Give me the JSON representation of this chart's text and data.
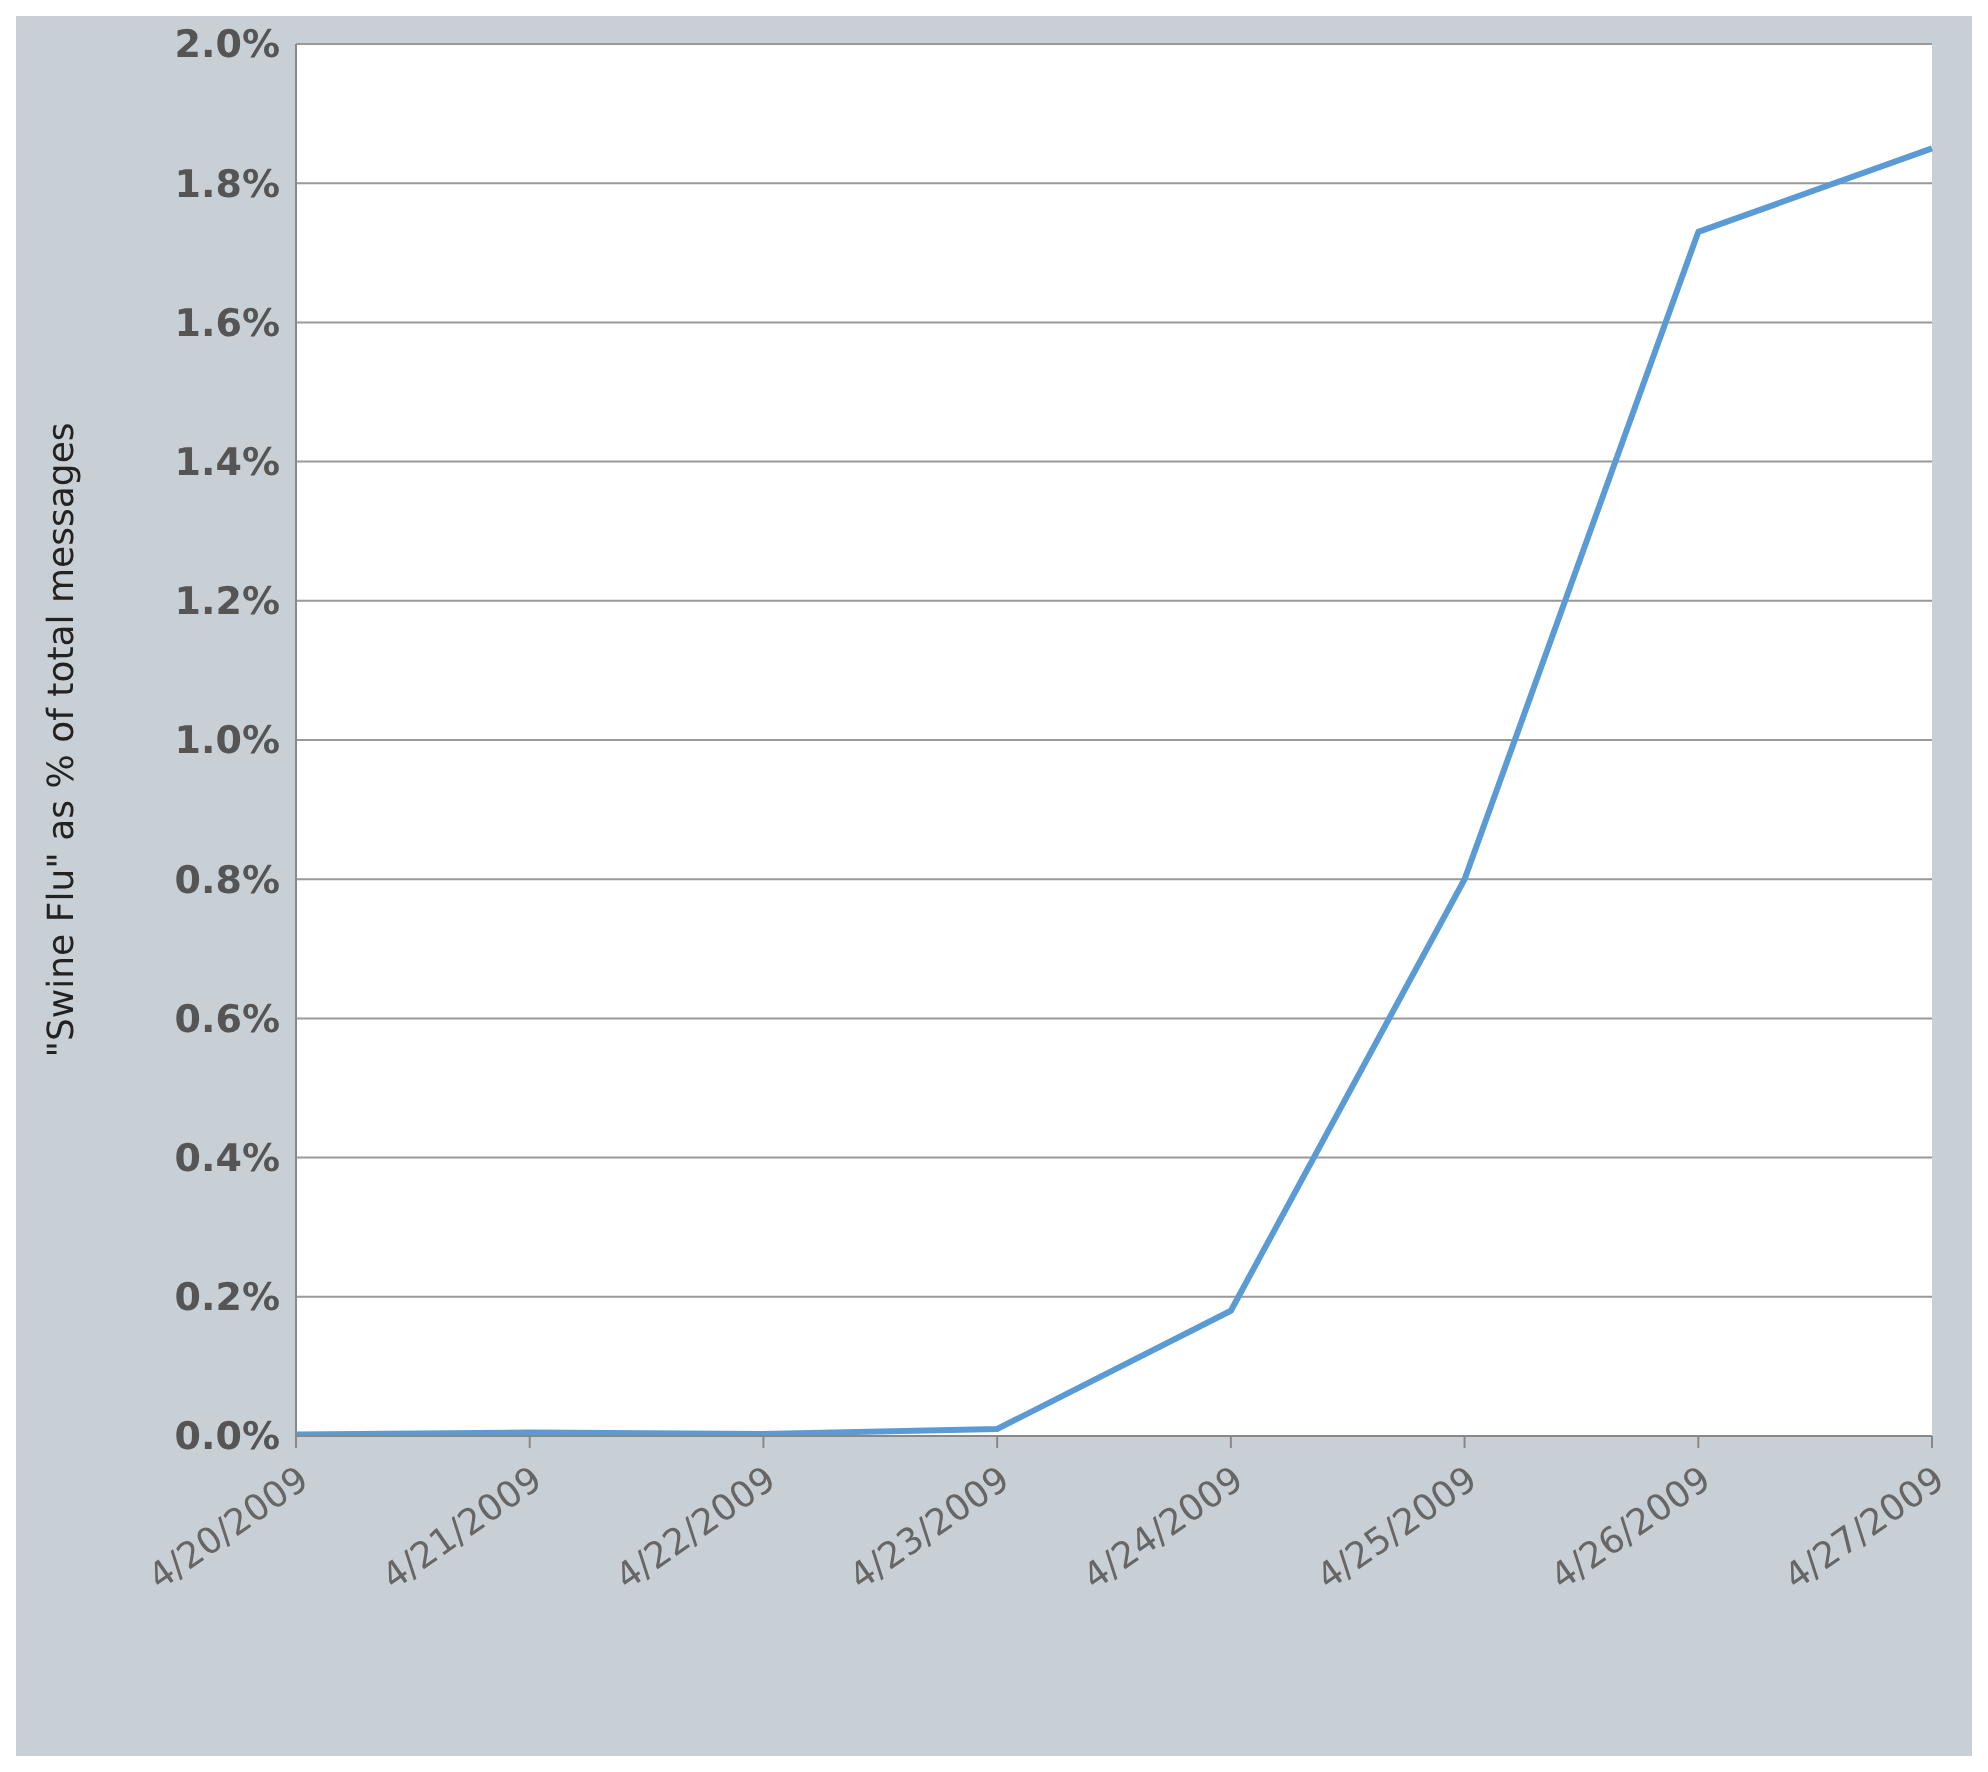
{
  "chart_data": {
    "type": "line",
    "ylabel": "\"Swine Flu\" as % of total messages",
    "categories": [
      "4/20/2009",
      "4/21/2009",
      "4/22/2009",
      "4/23/2009",
      "4/24/2009",
      "4/25/2009",
      "4/26/2009",
      "4/27/2009"
    ],
    "series": [
      {
        "color": "#5b9bd5",
        "values": [
          0.002,
          0.005,
          0.003,
          0.01,
          0.18,
          0.8,
          1.73,
          1.85
        ]
      }
    ],
    "ylim": [
      0,
      2
    ],
    "yticks": [
      {
        "value": 0,
        "label": "0.0%"
      },
      {
        "value": 0.2,
        "label": "0.2%"
      },
      {
        "value": 0.4,
        "label": "0.4%"
      },
      {
        "value": 0.6,
        "label": "0.6%"
      },
      {
        "value": 0.8,
        "label": "0.8%"
      },
      {
        "value": 1,
        "label": "1.0%"
      },
      {
        "value": 1.2,
        "label": "1.2%"
      },
      {
        "value": 1.4,
        "label": "1.4%"
      },
      {
        "value": 1.6,
        "label": "1.6%"
      },
      {
        "value": 1.8,
        "label": "1.8%"
      },
      {
        "value": 2,
        "label": "2.0%"
      }
    ],
    "grid": "y",
    "marker": "none",
    "line_style": "solid",
    "legend": false
  }
}
